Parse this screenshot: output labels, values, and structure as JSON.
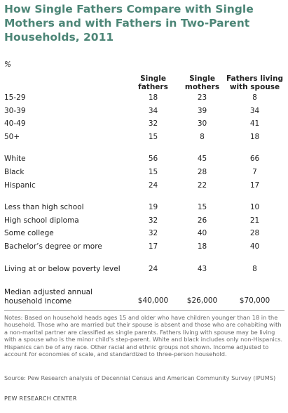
{
  "title": "How Single Fathers Compare with Single Mothers and with Fathers in Two-Parent Households, 2011",
  "unit": "%",
  "notes": "Notes: Based on household heads ages 15 and older who have children younger than 18 in the household. Those who are married but their spouse is absent and those who are cohabiting with a non-marital partner are classified as single parents. Fathers living with spouse may be living with a spouse who is the minor child’s step-parent. White and black includes only non-Hispanics. Hispanics can be of any race. Other racial and ethnic groups not shown. Income adjusted to account for economies of scale, and standardized to three-person household.",
  "source": "Source: Pew Research analysis of Decennial Census and American Community Survey (IPUMS)",
  "org": "PEW RESEARCH CENTER",
  "chart_data": {
    "type": "table",
    "title": "How Single Fathers Compare with Single Mothers and with Fathers in Two-Parent Households, 2011",
    "columns": [
      "Single fathers",
      "Single mothers",
      "Fathers living with spouse"
    ],
    "groups": [
      {
        "rows": [
          {
            "label": "15-29",
            "values": [
              "18",
              "23",
              "8"
            ]
          },
          {
            "label": "30-39",
            "values": [
              "34",
              "39",
              "34"
            ]
          },
          {
            "label": "40-49",
            "values": [
              "32",
              "30",
              "41"
            ]
          },
          {
            "label": "50+",
            "values": [
              "15",
              "8",
              "18"
            ]
          }
        ]
      },
      {
        "rows": [
          {
            "label": "White",
            "values": [
              "56",
              "45",
              "66"
            ]
          },
          {
            "label": "Black",
            "values": [
              "15",
              "28",
              "7"
            ]
          },
          {
            "label": "Hispanic",
            "values": [
              "24",
              "22",
              "17"
            ]
          }
        ]
      },
      {
        "rows": [
          {
            "label": "Less than high school",
            "values": [
              "19",
              "15",
              "10"
            ]
          },
          {
            "label": "High school diploma",
            "values": [
              "32",
              "26",
              "21"
            ]
          },
          {
            "label": "Some college",
            "values": [
              "32",
              "40",
              "28"
            ]
          },
          {
            "label": "Bachelor’s degree or more",
            "values": [
              "17",
              "18",
              "40"
            ]
          }
        ]
      },
      {
        "rows": [
          {
            "label": "Living at or below poverty level",
            "values": [
              "24",
              "43",
              "8"
            ]
          }
        ]
      },
      {
        "last": true,
        "rows": [
          {
            "label": "Median adjusted annual household income",
            "values": [
              "$40,000",
              "$26,000",
              "$70,000"
            ]
          }
        ]
      }
    ]
  }
}
